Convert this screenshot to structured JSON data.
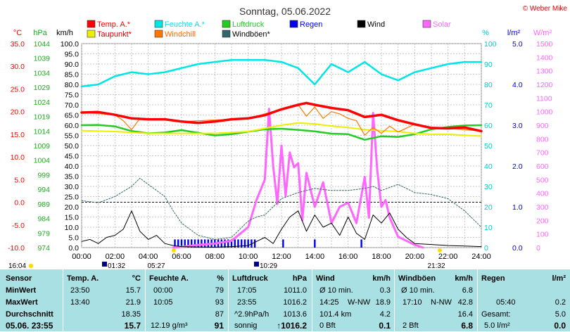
{
  "title": "Sonntag, 05.06.2022",
  "copyright": "© Weber Mike",
  "chart_data": {
    "type": "line",
    "x_ticks": [
      "00:00",
      "02:00",
      "04:00",
      "06:00",
      "08:00",
      "10:00",
      "12:00",
      "14:00",
      "16:00",
      "18:00",
      "20:00",
      "22:00",
      "24:00"
    ],
    "legend": [
      {
        "label": "Temp. A.*",
        "color": "#ff0000"
      },
      {
        "label": "Feuchte A.*",
        "color": "#00e5e5"
      },
      {
        "label": "Luftdruck",
        "color": "#22cc22"
      },
      {
        "label": "Regen",
        "color": "#0000ee"
      },
      {
        "label": "Wind",
        "color": "#000000"
      },
      {
        "label": "Solar",
        "color": "#ff66ff"
      },
      {
        "label": "Taupunkt*",
        "color": "#eeee00"
      },
      {
        "label": "Windchill",
        "color": "#ff7700"
      },
      {
        "label": "Windböen*",
        "color": "#336666"
      }
    ],
    "axes": {
      "celsius": {
        "unit": "°C",
        "ticks": [
          "35.0",
          "30.0",
          "25.0",
          "20.0",
          "15.0",
          "10.0",
          "5.0",
          "0.0",
          "-5.0",
          "-10.0"
        ],
        "color": "#ff0000"
      },
      "hpa": {
        "unit": "hPa",
        "ticks": [
          "1044",
          "1039",
          "1034",
          "1029",
          "1024",
          "1019",
          "1014",
          "1009",
          "1004",
          "999",
          "994",
          "989",
          "984",
          "979",
          "974"
        ],
        "color": "#22aa22"
      },
      "kmh": {
        "unit": "km/h",
        "ticks": [
          "100.0",
          "95.0",
          "90.0",
          "85.0",
          "80.0",
          "75.0",
          "70.0",
          "65.0",
          "60.0",
          "55.0",
          "50.0",
          "45.0",
          "40.0",
          "35.0",
          "30.0",
          "25.0",
          "20.0",
          "15.0",
          "10.0",
          "5.0",
          "0.0"
        ],
        "color": "#000000"
      },
      "percent": {
        "unit": "%",
        "ticks": [
          "100",
          "90",
          "80",
          "70",
          "60",
          "50",
          "40",
          "30",
          "20",
          "10",
          "0"
        ],
        "color": "#00cccc"
      },
      "rain": {
        "unit": "l/m²",
        "ticks": [
          "5.0",
          "4.0",
          "3.0",
          "2.0",
          "1.0",
          "0.0"
        ],
        "color": "#0000dd"
      },
      "solar": {
        "unit": "W/m²",
        "ticks": [
          "1500",
          "1400",
          "1300",
          "1200",
          "1100",
          "1000",
          "900",
          "800",
          "700",
          "600",
          "500",
          "400",
          "300",
          "200",
          "100",
          "0"
        ],
        "color": "#ff66ff"
      }
    },
    "series": [
      {
        "name": "Temp. A.*",
        "axis": "celsius",
        "color": "#ff0000",
        "x": [
          0,
          1,
          2,
          3,
          4,
          5,
          6,
          7,
          8,
          9,
          10,
          11,
          12,
          13,
          13.5,
          14,
          15,
          16,
          17,
          18,
          19,
          20,
          21,
          22,
          23,
          24
        ],
        "y": [
          19.8,
          19.9,
          19.3,
          18.5,
          18.3,
          18.3,
          17.8,
          17.5,
          17.8,
          18.3,
          18.5,
          19.2,
          20.5,
          21.5,
          21.9,
          21.5,
          20.8,
          20.3,
          18.8,
          19.3,
          18.1,
          17.2,
          16.4,
          16.3,
          16.5,
          15.7
        ]
      },
      {
        "name": "Taupunkt*",
        "axis": "celsius",
        "color": "#eeee00",
        "x": [
          0,
          2,
          4,
          6,
          8,
          10,
          12,
          13,
          14,
          15,
          16,
          17,
          18,
          19,
          20,
          21,
          22,
          23,
          24
        ],
        "y": [
          15.8,
          15.6,
          15.2,
          15.2,
          15.2,
          15.6,
          17.0,
          17.5,
          17.3,
          16.8,
          16.5,
          16.0,
          15.8,
          15.6,
          15.2,
          15.0,
          15.0,
          14.8,
          14.6
        ]
      },
      {
        "name": "Windchill",
        "axis": "celsius",
        "color": "#ff7700",
        "x": [
          0,
          2,
          2.5,
          3,
          3.5,
          4,
          5,
          6,
          10,
          12,
          13,
          13.5,
          14,
          14.5,
          15,
          15.5,
          16,
          16.5,
          17,
          17.5,
          18,
          18.5,
          19,
          20,
          21,
          22,
          24
        ],
        "y": [
          19.8,
          19.3,
          18.0,
          16.0,
          18.5,
          18.3,
          18.3,
          17.8,
          18.5,
          20.5,
          21.5,
          19.0,
          21.0,
          18.5,
          20.0,
          19.5,
          18.5,
          18.0,
          14.8,
          16.5,
          15.2,
          16.8,
          15.5,
          17.2,
          16.4,
          16.3,
          15.7
        ]
      },
      {
        "name": "Feuchte A.*",
        "axis": "percent",
        "color": "#00e5e5",
        "x": [
          0,
          1,
          2,
          3,
          4,
          5,
          6,
          7,
          8,
          9,
          10,
          11,
          12,
          13,
          14,
          15,
          16,
          17,
          18,
          19,
          20,
          21,
          22,
          23,
          24
        ],
        "y": [
          79,
          80,
          84,
          86,
          85,
          86,
          88,
          90,
          91,
          92,
          92,
          92,
          91,
          88,
          80,
          90,
          86,
          91,
          85,
          82,
          86,
          88,
          90,
          91,
          91
        ]
      },
      {
        "name": "Luftdruck",
        "axis": "hpa",
        "color": "#22cc22",
        "x": [
          0,
          1,
          2,
          3,
          4,
          5,
          6,
          7,
          8,
          9,
          10,
          11,
          12,
          13,
          14,
          15,
          16,
          17,
          18,
          19,
          20,
          21,
          22,
          23,
          24
        ],
        "y": [
          1016.0,
          1016.1,
          1015.6,
          1014.0,
          1013.2,
          1013.5,
          1014.3,
          1013.4,
          1012.5,
          1012.9,
          1013.8,
          1014.6,
          1014.8,
          1014.4,
          1013.9,
          1013.1,
          1012.9,
          1011.0,
          1012.2,
          1012.0,
          1012.9,
          1014.6,
          1015.4,
          1015.9,
          1016.0
        ]
      },
      {
        "name": "Wind",
        "axis": "kmh",
        "color": "#000000",
        "x": [
          0,
          0.5,
          1,
          1.5,
          2,
          2.5,
          3,
          3.5,
          4,
          4.5,
          5,
          5.5,
          6,
          7,
          8,
          9,
          10,
          10.5,
          11,
          11.5,
          12,
          12.5,
          13,
          13.5,
          14,
          14.5,
          15,
          15.5,
          16,
          16.5,
          17,
          17.5,
          18,
          18.5,
          19,
          19.5,
          20,
          21,
          22,
          23,
          24
        ],
        "y": [
          3,
          4,
          2,
          5,
          6,
          9,
          18,
          8,
          4,
          6,
          2,
          1,
          0.5,
          0.3,
          0.2,
          0.5,
          1,
          3,
          5,
          2,
          9,
          15,
          18,
          8,
          16,
          10,
          12,
          6,
          15,
          7,
          4,
          16,
          12,
          17,
          9,
          5,
          2,
          1.5,
          1,
          0.8,
          0.5
        ]
      },
      {
        "name": "Windböen*",
        "axis": "kmh",
        "color": "#336666",
        "x": [
          0,
          1,
          2,
          3,
          3.5,
          4,
          4.5,
          5,
          5.5,
          6,
          7,
          8,
          9,
          10,
          10.5,
          11,
          12,
          13,
          14,
          15,
          16,
          17,
          17.5,
          18,
          19,
          20,
          21,
          22,
          23,
          24
        ],
        "y": [
          23,
          22,
          25,
          30,
          34,
          31,
          28,
          25,
          18,
          12,
          6,
          4,
          5,
          13,
          15,
          16,
          24,
          27,
          29,
          28,
          28,
          29,
          30,
          28,
          31,
          27,
          26,
          24,
          18,
          10
        ]
      },
      {
        "name": "Solar",
        "axis": "solar",
        "color": "#ff66ff",
        "x": [
          5.5,
          6,
          7,
          8,
          9,
          9.5,
          10,
          10.5,
          11,
          11.25,
          11.5,
          11.75,
          12,
          12.25,
          12.5,
          12.75,
          13,
          13.25,
          13.5,
          14,
          14.5,
          15,
          15.5,
          16,
          16.5,
          17,
          17.25,
          17.5,
          17.75,
          18,
          18.25,
          18.5,
          19,
          19.5,
          20,
          20.5
        ],
        "y": [
          0,
          5,
          20,
          30,
          50,
          100,
          150,
          350,
          500,
          1020,
          600,
          320,
          750,
          380,
          700,
          590,
          620,
          200,
          550,
          300,
          480,
          180,
          300,
          330,
          180,
          520,
          220,
          990,
          570,
          300,
          350,
          220,
          80,
          50,
          20,
          0
        ]
      }
    ],
    "rain_marks": {
      "axis": "rain",
      "unit": "l/m²",
      "x": [
        5.6,
        5.8,
        6.0,
        6.2,
        6.4,
        6.6,
        6.8,
        7.0,
        7.2,
        7.4,
        7.6,
        7.8,
        8.0,
        8.2,
        8.4,
        8.6,
        8.8,
        9.0,
        9.2,
        9.4,
        9.6,
        9.8,
        10.0,
        10.2,
        10.4,
        12.1,
        14.0,
        16.8
      ],
      "y": [
        0.2,
        0.2,
        0.2,
        0.2,
        0.2,
        0.2,
        0.2,
        0.2,
        0.2,
        0.2,
        0.2,
        0.2,
        0.2,
        0.2,
        0.2,
        0.2,
        0.2,
        0.2,
        0.2,
        0.2,
        0.2,
        0.2,
        0.2,
        0.2,
        0.2,
        0.2,
        0.2,
        0.2
      ]
    },
    "reference_lines": [
      {
        "axis": "celsius",
        "y": 0,
        "color": "#0000aa"
      }
    ],
    "ylim_celsius": [
      -10,
      35
    ],
    "xlim_hours": [
      0,
      24
    ]
  },
  "footer_times": {
    "left": "16:04",
    "sun_marks": [
      "01:32",
      "05:27",
      "10:29",
      "21:32"
    ]
  },
  "stats": {
    "headers": {
      "sensor": "Sensor",
      "temp": "Temp. A.",
      "temp_unit": "°C",
      "hum": "Feuchte A.",
      "hum_unit": "%",
      "press": "Luftdruck",
      "press_unit": "hPa",
      "wind": "Wind",
      "wind_unit": "km/h",
      "gust": "Windböen",
      "gust_unit": "km/h",
      "rain": "Regen",
      "rain_unit": "l/m²"
    },
    "row_labels": {
      "min": "MinWert",
      "max": "MaxWert",
      "avg": "Durchschnitt",
      "current": "05.06. 23:55"
    },
    "temp": {
      "min_time": "23:50",
      "min": "15.7",
      "max_time": "13:40",
      "max": "21.9",
      "avg": "18.35",
      "current": "15.7"
    },
    "hum": {
      "min_time": "00:00",
      "min": "79",
      "max_time": "10:05",
      "max": "93",
      "avg": "87",
      "abs": "12.19 g/m³",
      "current": "91"
    },
    "press": {
      "min_time": "17:05",
      "min": "1011.0",
      "max_time": "23:55",
      "max": "1016.2",
      "trend": "^2.9hPa/h",
      "avg": "1013.6",
      "forecast": "sonnig",
      "current": "↑1016.2"
    },
    "wind": {
      "l1": "Ø 10 min.",
      "l1v": "0.3",
      "l2t": "14:25",
      "l2d": "W-NW",
      "l2v": "18.9",
      "l3": "101.4 km",
      "l3v": "4.2",
      "l4": "0 Bft",
      "current": "0.1"
    },
    "gust": {
      "l1": "Ø 10 min.",
      "l1v": "6.8",
      "l2t": "17:10",
      "l2d": "N-NW",
      "l2v": "42.8",
      "l3v": "16.4",
      "l4": "2 Bft",
      "current": "6.8"
    },
    "rain": {
      "l2t": "05:40",
      "l2v": "0.2",
      "l3": "Gesamt:",
      "l3v": "5.0",
      "current": "5.0 l/m²",
      "current_v": "0.0"
    }
  }
}
